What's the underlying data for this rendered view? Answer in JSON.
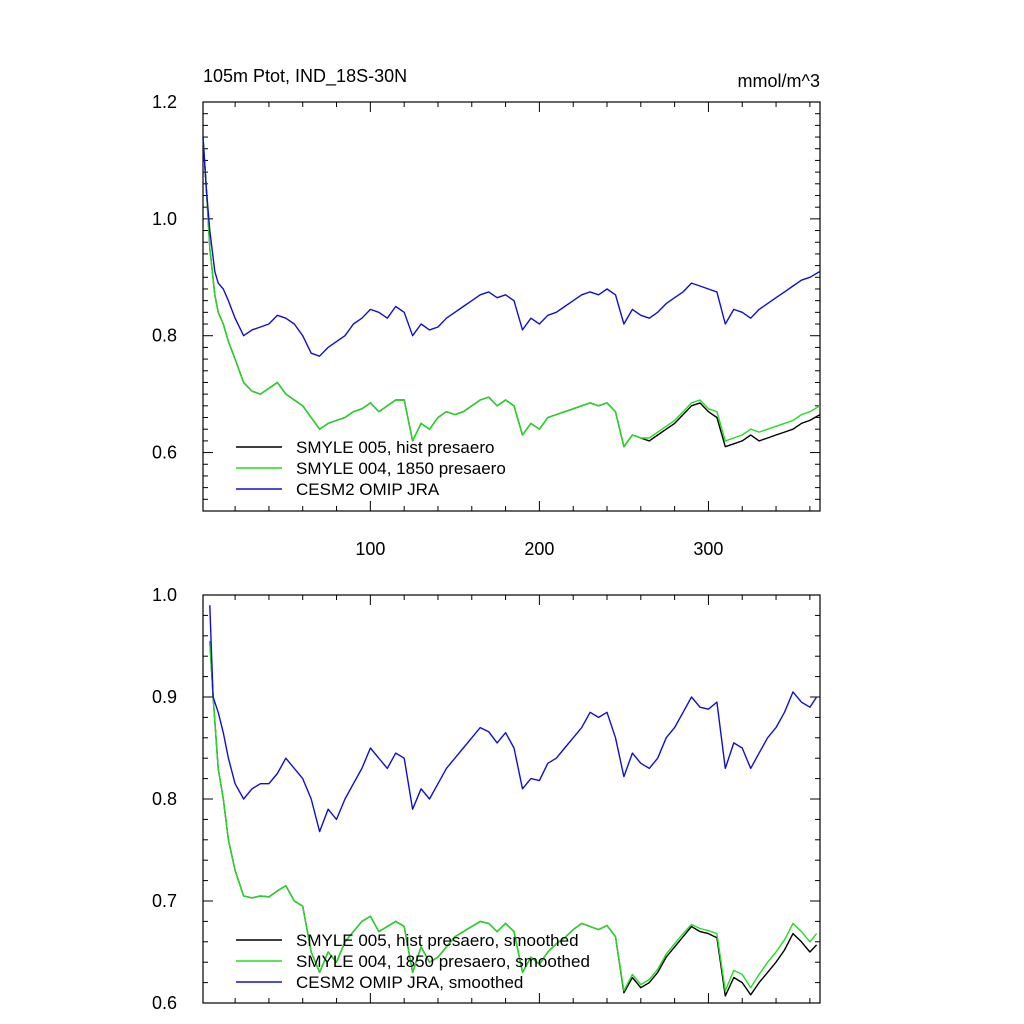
{
  "colors": {
    "black": "#000000",
    "green": "#22dd22",
    "blue": "#1010cc"
  },
  "chart_data": [
    {
      "type": "line",
      "title": "105m Ptot, IND_18S-30N",
      "units": "mmol/m^3",
      "xlim": [
        1,
        366
      ],
      "ylim": [
        0.5,
        1.2
      ],
      "xticks": [
        100,
        200,
        300
      ],
      "xtick_labels": [
        "100",
        "200",
        "300"
      ],
      "yticks": [
        0.6,
        0.8,
        1.0,
        1.2
      ],
      "ytick_labels": [
        "0.6",
        "0.8",
        "1.0",
        "1.2"
      ],
      "legend_position": "bottom-left",
      "series": [
        {
          "name": "SMYLE 005, hist presaero",
          "color": "#000000",
          "x": [
            1,
            3,
            5,
            8,
            10,
            13,
            16,
            20,
            25,
            30,
            35,
            40,
            45,
            50,
            55,
            60,
            65,
            70,
            75,
            80,
            85,
            90,
            95,
            100,
            105,
            110,
            115,
            120,
            125,
            130,
            135,
            140,
            145,
            150,
            155,
            160,
            165,
            170,
            175,
            180,
            185,
            190,
            195,
            200,
            205,
            210,
            215,
            220,
            225,
            230,
            235,
            240,
            245,
            250,
            255,
            260,
            265,
            270,
            275,
            280,
            285,
            290,
            295,
            300,
            305,
            310,
            315,
            320,
            325,
            330,
            335,
            340,
            345,
            350,
            355,
            360,
            366
          ],
          "y": [
            1.14,
            1.05,
            0.95,
            0.87,
            0.84,
            0.82,
            0.79,
            0.76,
            0.72,
            0.705,
            0.7,
            0.71,
            0.72,
            0.7,
            0.69,
            0.68,
            0.66,
            0.64,
            0.65,
            0.655,
            0.66,
            0.67,
            0.675,
            0.685,
            0.67,
            0.68,
            0.69,
            0.69,
            0.62,
            0.65,
            0.64,
            0.66,
            0.67,
            0.665,
            0.67,
            0.68,
            0.69,
            0.695,
            0.68,
            0.69,
            0.68,
            0.63,
            0.65,
            0.64,
            0.66,
            0.665,
            0.67,
            0.675,
            0.68,
            0.685,
            0.68,
            0.685,
            0.67,
            0.61,
            0.63,
            0.625,
            0.62,
            0.63,
            0.64,
            0.65,
            0.665,
            0.68,
            0.685,
            0.67,
            0.66,
            0.61,
            0.615,
            0.62,
            0.63,
            0.62,
            0.625,
            0.63,
            0.635,
            0.64,
            0.65,
            0.655,
            0.665
          ]
        },
        {
          "name": "SMYLE 004, 1850 presaero",
          "color": "#22dd22",
          "x": [
            1,
            3,
            5,
            8,
            10,
            13,
            16,
            20,
            25,
            30,
            35,
            40,
            45,
            50,
            55,
            60,
            65,
            70,
            75,
            80,
            85,
            90,
            95,
            100,
            105,
            110,
            115,
            120,
            125,
            130,
            135,
            140,
            145,
            150,
            155,
            160,
            165,
            170,
            175,
            180,
            185,
            190,
            195,
            200,
            205,
            210,
            215,
            220,
            225,
            230,
            235,
            240,
            245,
            250,
            255,
            260,
            265,
            270,
            275,
            280,
            285,
            290,
            295,
            300,
            305,
            310,
            315,
            320,
            325,
            330,
            335,
            340,
            345,
            350,
            355,
            360,
            366
          ],
          "y": [
            1.14,
            1.05,
            0.95,
            0.87,
            0.84,
            0.82,
            0.79,
            0.76,
            0.72,
            0.705,
            0.7,
            0.71,
            0.72,
            0.7,
            0.69,
            0.68,
            0.66,
            0.64,
            0.65,
            0.655,
            0.66,
            0.67,
            0.675,
            0.685,
            0.67,
            0.68,
            0.69,
            0.69,
            0.62,
            0.65,
            0.64,
            0.66,
            0.67,
            0.665,
            0.67,
            0.68,
            0.69,
            0.695,
            0.68,
            0.69,
            0.68,
            0.63,
            0.65,
            0.64,
            0.66,
            0.665,
            0.67,
            0.675,
            0.68,
            0.685,
            0.68,
            0.685,
            0.67,
            0.61,
            0.63,
            0.625,
            0.625,
            0.635,
            0.645,
            0.655,
            0.67,
            0.685,
            0.69,
            0.675,
            0.67,
            0.62,
            0.625,
            0.63,
            0.64,
            0.635,
            0.64,
            0.645,
            0.65,
            0.655,
            0.665,
            0.67,
            0.68
          ]
        },
        {
          "name": "CESM2 OMIP JRA",
          "color": "#1010cc",
          "x": [
            1,
            3,
            5,
            8,
            10,
            13,
            16,
            20,
            25,
            30,
            35,
            40,
            45,
            50,
            55,
            60,
            65,
            70,
            75,
            80,
            85,
            90,
            95,
            100,
            105,
            110,
            115,
            120,
            125,
            130,
            135,
            140,
            145,
            150,
            155,
            160,
            165,
            170,
            175,
            180,
            185,
            190,
            195,
            200,
            205,
            210,
            215,
            220,
            225,
            230,
            235,
            240,
            245,
            250,
            255,
            260,
            265,
            270,
            275,
            280,
            285,
            290,
            295,
            300,
            305,
            310,
            315,
            320,
            325,
            330,
            335,
            340,
            345,
            350,
            355,
            360,
            366
          ],
          "y": [
            1.14,
            1.05,
            0.98,
            0.91,
            0.89,
            0.88,
            0.86,
            0.83,
            0.8,
            0.81,
            0.815,
            0.82,
            0.835,
            0.83,
            0.82,
            0.8,
            0.77,
            0.765,
            0.78,
            0.79,
            0.8,
            0.82,
            0.83,
            0.845,
            0.84,
            0.83,
            0.85,
            0.84,
            0.8,
            0.82,
            0.81,
            0.815,
            0.83,
            0.84,
            0.85,
            0.86,
            0.87,
            0.875,
            0.865,
            0.87,
            0.86,
            0.81,
            0.83,
            0.82,
            0.835,
            0.84,
            0.85,
            0.86,
            0.87,
            0.875,
            0.87,
            0.88,
            0.87,
            0.82,
            0.845,
            0.835,
            0.83,
            0.84,
            0.855,
            0.865,
            0.875,
            0.89,
            0.885,
            0.88,
            0.875,
            0.82,
            0.845,
            0.84,
            0.83,
            0.845,
            0.855,
            0.865,
            0.875,
            0.885,
            0.895,
            0.9,
            0.91
          ]
        }
      ]
    },
    {
      "type": "line",
      "title": "",
      "xlim": [
        1,
        366
      ],
      "ylim": [
        0.6,
        1.0
      ],
      "xticks": [
        100,
        200,
        300
      ],
      "xtick_labels": [
        "",
        "",
        ""
      ],
      "yticks": [
        0.6,
        0.7,
        0.8,
        0.9,
        1.0
      ],
      "ytick_labels": [
        "0.6",
        "0.7",
        "0.8",
        "0.9",
        "1.0"
      ],
      "legend_position": "bottom-left",
      "series": [
        {
          "name": "SMYLE 005, hist presaero, smoothed",
          "color": "#000000",
          "x": [
            5,
            7,
            10,
            13,
            16,
            20,
            25,
            30,
            35,
            40,
            45,
            50,
            55,
            60,
            65,
            70,
            75,
            80,
            85,
            90,
            95,
            100,
            105,
            110,
            115,
            120,
            125,
            130,
            135,
            140,
            145,
            150,
            155,
            160,
            165,
            170,
            175,
            180,
            185,
            190,
            195,
            200,
            205,
            210,
            215,
            220,
            225,
            230,
            235,
            240,
            245,
            250,
            255,
            260,
            265,
            270,
            275,
            280,
            285,
            290,
            295,
            300,
            305,
            310,
            315,
            320,
            325,
            330,
            335,
            340,
            345,
            350,
            355,
            360,
            364
          ],
          "y": [
            0.955,
            0.9,
            0.83,
            0.8,
            0.76,
            0.73,
            0.705,
            0.703,
            0.705,
            0.704,
            0.71,
            0.715,
            0.7,
            0.695,
            0.65,
            0.63,
            0.65,
            0.64,
            0.66,
            0.67,
            0.68,
            0.685,
            0.67,
            0.675,
            0.68,
            0.675,
            0.63,
            0.655,
            0.64,
            0.645,
            0.655,
            0.665,
            0.67,
            0.675,
            0.68,
            0.678,
            0.67,
            0.678,
            0.67,
            0.63,
            0.645,
            0.638,
            0.65,
            0.658,
            0.664,
            0.672,
            0.678,
            0.675,
            0.672,
            0.676,
            0.665,
            0.61,
            0.625,
            0.615,
            0.62,
            0.63,
            0.645,
            0.655,
            0.665,
            0.675,
            0.67,
            0.668,
            0.664,
            0.607,
            0.625,
            0.62,
            0.608,
            0.62,
            0.63,
            0.64,
            0.652,
            0.668,
            0.66,
            0.65,
            0.657
          ]
        },
        {
          "name": "SMYLE 004, 1850 presaero, smoothed",
          "color": "#22dd22",
          "x": [
            5,
            7,
            10,
            13,
            16,
            20,
            25,
            30,
            35,
            40,
            45,
            50,
            55,
            60,
            65,
            70,
            75,
            80,
            85,
            90,
            95,
            100,
            105,
            110,
            115,
            120,
            125,
            130,
            135,
            140,
            145,
            150,
            155,
            160,
            165,
            170,
            175,
            180,
            185,
            190,
            195,
            200,
            205,
            210,
            215,
            220,
            225,
            230,
            235,
            240,
            245,
            250,
            255,
            260,
            265,
            270,
            275,
            280,
            285,
            290,
            295,
            300,
            305,
            310,
            315,
            320,
            325,
            330,
            335,
            340,
            345,
            350,
            355,
            360,
            364
          ],
          "y": [
            0.955,
            0.9,
            0.83,
            0.8,
            0.76,
            0.73,
            0.705,
            0.703,
            0.705,
            0.704,
            0.71,
            0.715,
            0.7,
            0.695,
            0.65,
            0.63,
            0.65,
            0.64,
            0.66,
            0.67,
            0.68,
            0.685,
            0.67,
            0.675,
            0.68,
            0.675,
            0.63,
            0.655,
            0.64,
            0.645,
            0.655,
            0.665,
            0.67,
            0.675,
            0.68,
            0.678,
            0.67,
            0.678,
            0.67,
            0.63,
            0.645,
            0.638,
            0.65,
            0.658,
            0.664,
            0.672,
            0.678,
            0.675,
            0.672,
            0.676,
            0.665,
            0.612,
            0.628,
            0.618,
            0.623,
            0.633,
            0.648,
            0.658,
            0.668,
            0.677,
            0.673,
            0.671,
            0.668,
            0.612,
            0.632,
            0.628,
            0.615,
            0.628,
            0.64,
            0.65,
            0.662,
            0.678,
            0.67,
            0.66,
            0.668
          ]
        },
        {
          "name": "CESM2 OMIP JRA, smoothed",
          "color": "#1010cc",
          "x": [
            5,
            7,
            10,
            13,
            16,
            20,
            25,
            30,
            35,
            40,
            45,
            50,
            55,
            60,
            65,
            70,
            75,
            80,
            85,
            90,
            95,
            100,
            105,
            110,
            115,
            120,
            125,
            130,
            135,
            140,
            145,
            150,
            155,
            160,
            165,
            170,
            175,
            180,
            185,
            190,
            195,
            200,
            205,
            210,
            215,
            220,
            225,
            230,
            235,
            240,
            245,
            250,
            255,
            260,
            265,
            270,
            275,
            280,
            285,
            290,
            295,
            300,
            305,
            310,
            315,
            320,
            325,
            330,
            335,
            340,
            345,
            350,
            355,
            360,
            364
          ],
          "y": [
            0.99,
            0.9,
            0.885,
            0.865,
            0.84,
            0.815,
            0.8,
            0.81,
            0.815,
            0.815,
            0.825,
            0.84,
            0.83,
            0.82,
            0.8,
            0.768,
            0.79,
            0.78,
            0.8,
            0.815,
            0.83,
            0.85,
            0.84,
            0.83,
            0.845,
            0.84,
            0.79,
            0.81,
            0.8,
            0.815,
            0.83,
            0.84,
            0.85,
            0.86,
            0.87,
            0.866,
            0.855,
            0.865,
            0.85,
            0.81,
            0.82,
            0.818,
            0.835,
            0.84,
            0.85,
            0.86,
            0.87,
            0.885,
            0.88,
            0.885,
            0.86,
            0.822,
            0.845,
            0.835,
            0.83,
            0.84,
            0.86,
            0.87,
            0.885,
            0.9,
            0.89,
            0.888,
            0.895,
            0.83,
            0.855,
            0.85,
            0.83,
            0.845,
            0.86,
            0.87,
            0.885,
            0.905,
            0.895,
            0.89,
            0.9
          ]
        }
      ]
    }
  ]
}
